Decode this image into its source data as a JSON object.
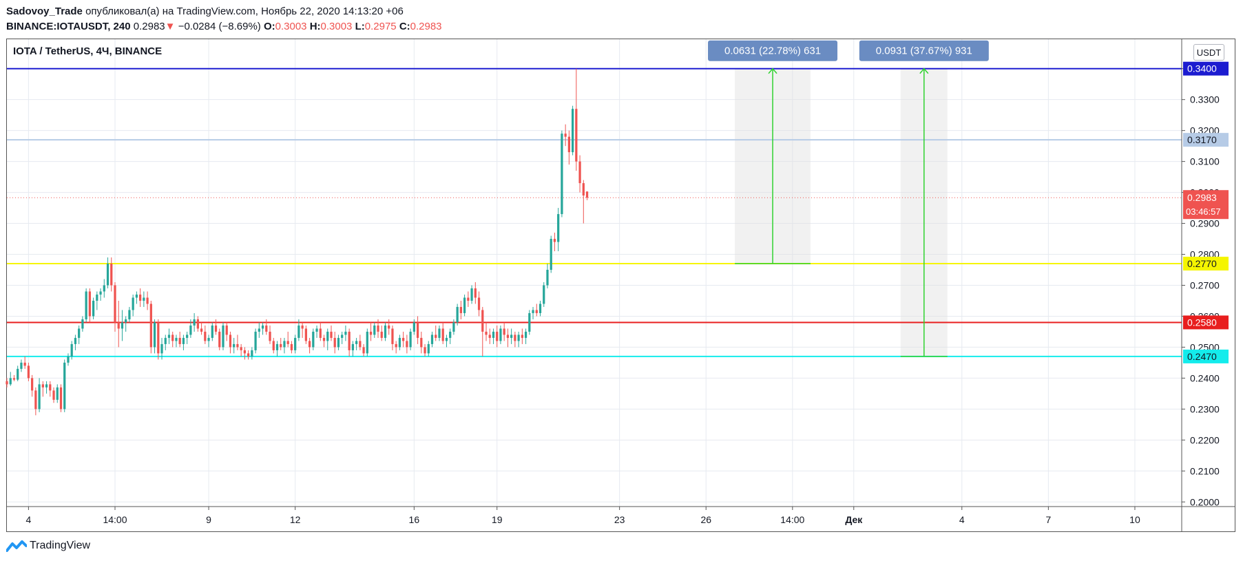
{
  "header": {
    "author": "Sadovoy_Trade",
    "published": "опубликовал(а) на TradingView.com, Ноябрь 22, 2020 14:13:20 +06",
    "symbol": "BINANCE:IOTAUSDT, 240",
    "last": "0.2983",
    "change": "−0.0284 (−8.69%)",
    "o_label": "O:",
    "o_value": "0.3003",
    "h_label": "H:",
    "h_value": "0.3003",
    "l_label": "L:",
    "l_value": "0.2975",
    "c_label": "C:",
    "c_value": "0.2983"
  },
  "chart_title": "IOTA / TetherUS, 4Ч, BINANCE",
  "currency_button": "USDT",
  "footer": {
    "brand": "TradingView"
  },
  "colors": {
    "up": "#26a69a",
    "down": "#ef5350",
    "grid": "#e6eaf0",
    "blue_line": "#1c1cd0",
    "light_blue_line": "#b6cbe6",
    "yellow_line": "#f5f500",
    "red_line": "#e81e1e",
    "cyan_line": "#14ecec",
    "projection": "#2fd22f",
    "badge": "#6a8cc2"
  },
  "chart_data": {
    "type": "candlestick",
    "title": "IOTA / TetherUS, 4Ч, BINANCE",
    "y_axis": {
      "ticks": [
        "0.2000",
        "0.2100",
        "0.2200",
        "0.2300",
        "0.2400",
        "0.2500",
        "0.2600",
        "0.2700",
        "0.2800",
        "0.2900",
        "0.3000",
        "0.3100",
        "0.3200",
        "0.3300",
        "0.3400"
      ],
      "range": [
        0.1985,
        0.3495
      ],
      "position": "right"
    },
    "x_axis": {
      "ticks": [
        {
          "label": "4",
          "i": 6
        },
        {
          "label": "14:00",
          "i": 30
        },
        {
          "label": "9",
          "i": 56
        },
        {
          "label": "12",
          "i": 80
        },
        {
          "label": "16",
          "i": 113
        },
        {
          "label": "19",
          "i": 136
        },
        {
          "label": "23",
          "i": 170
        },
        {
          "label": "26",
          "i": 194
        },
        {
          "label": "14:00",
          "i": 218
        },
        {
          "label": "Дек",
          "i": 235
        },
        {
          "label": "4",
          "i": 265
        },
        {
          "label": "7",
          "i": 289
        },
        {
          "label": "10",
          "i": 313
        }
      ],
      "range": [
        0,
        326
      ]
    },
    "candles": [
      [
        0.239,
        0.24,
        0.237,
        0.238
      ],
      [
        0.238,
        0.242,
        0.2375,
        0.24
      ],
      [
        0.24,
        0.241,
        0.239,
        0.2395
      ],
      [
        0.2395,
        0.244,
        0.239,
        0.243
      ],
      [
        0.243,
        0.246,
        0.242,
        0.245
      ],
      [
        0.245,
        0.247,
        0.243,
        0.244
      ],
      [
        0.244,
        0.245,
        0.239,
        0.24
      ],
      [
        0.24,
        0.241,
        0.234,
        0.236
      ],
      [
        0.236,
        0.237,
        0.228,
        0.23
      ],
      [
        0.23,
        0.24,
        0.229,
        0.238
      ],
      [
        0.238,
        0.239,
        0.234,
        0.237
      ],
      [
        0.237,
        0.239,
        0.235,
        0.238
      ],
      [
        0.238,
        0.239,
        0.234,
        0.236
      ],
      [
        0.236,
        0.237,
        0.232,
        0.233
      ],
      [
        0.233,
        0.238,
        0.232,
        0.237
      ],
      [
        0.237,
        0.238,
        0.229,
        0.23
      ],
      [
        0.23,
        0.246,
        0.229,
        0.245
      ],
      [
        0.245,
        0.248,
        0.244,
        0.247
      ],
      [
        0.247,
        0.252,
        0.246,
        0.251
      ],
      [
        0.251,
        0.254,
        0.249,
        0.253
      ],
      [
        0.253,
        0.257,
        0.251,
        0.256
      ],
      [
        0.256,
        0.26,
        0.255,
        0.259
      ],
      [
        0.259,
        0.269,
        0.258,
        0.268
      ],
      [
        0.268,
        0.269,
        0.258,
        0.26
      ],
      [
        0.26,
        0.266,
        0.259,
        0.265
      ],
      [
        0.265,
        0.268,
        0.262,
        0.267
      ],
      [
        0.267,
        0.269,
        0.265,
        0.268
      ],
      [
        0.268,
        0.272,
        0.266,
        0.27
      ],
      [
        0.27,
        0.279,
        0.269,
        0.277
      ],
      [
        0.277,
        0.279,
        0.268,
        0.27
      ],
      [
        0.27,
        0.271,
        0.255,
        0.258
      ],
      [
        0.258,
        0.265,
        0.25,
        0.256
      ],
      [
        0.256,
        0.262,
        0.252,
        0.258
      ],
      [
        0.258,
        0.26,
        0.255,
        0.259
      ],
      [
        0.259,
        0.263,
        0.258,
        0.262
      ],
      [
        0.262,
        0.267,
        0.26,
        0.266
      ],
      [
        0.266,
        0.268,
        0.264,
        0.267
      ],
      [
        0.267,
        0.269,
        0.263,
        0.265
      ],
      [
        0.265,
        0.268,
        0.263,
        0.266
      ],
      [
        0.266,
        0.268,
        0.262,
        0.264
      ],
      [
        0.264,
        0.265,
        0.248,
        0.25
      ],
      [
        0.25,
        0.259,
        0.248,
        0.258
      ],
      [
        0.258,
        0.259,
        0.246,
        0.248
      ],
      [
        0.248,
        0.253,
        0.246,
        0.251
      ],
      [
        0.251,
        0.254,
        0.249,
        0.253
      ],
      [
        0.253,
        0.256,
        0.251,
        0.254
      ],
      [
        0.254,
        0.255,
        0.25,
        0.252
      ],
      [
        0.252,
        0.254,
        0.25,
        0.253
      ],
      [
        0.253,
        0.255,
        0.25,
        0.251
      ],
      [
        0.251,
        0.254,
        0.249,
        0.253
      ],
      [
        0.253,
        0.255,
        0.251,
        0.254
      ],
      [
        0.254,
        0.259,
        0.253,
        0.257
      ],
      [
        0.257,
        0.261,
        0.255,
        0.259
      ],
      [
        0.259,
        0.26,
        0.255,
        0.256
      ],
      [
        0.256,
        0.258,
        0.254,
        0.255
      ],
      [
        0.255,
        0.257,
        0.251,
        0.252
      ],
      [
        0.252,
        0.254,
        0.25,
        0.253
      ],
      [
        0.253,
        0.258,
        0.252,
        0.257
      ],
      [
        0.257,
        0.259,
        0.254,
        0.255
      ],
      [
        0.255,
        0.256,
        0.249,
        0.25
      ],
      [
        0.25,
        0.258,
        0.249,
        0.257
      ],
      [
        0.257,
        0.258,
        0.252,
        0.254
      ],
      [
        0.254,
        0.255,
        0.248,
        0.25
      ],
      [
        0.25,
        0.253,
        0.248,
        0.251
      ],
      [
        0.251,
        0.254,
        0.249,
        0.25
      ],
      [
        0.25,
        0.251,
        0.247,
        0.249
      ],
      [
        0.249,
        0.25,
        0.246,
        0.248
      ],
      [
        0.248,
        0.249,
        0.246,
        0.247
      ],
      [
        0.247,
        0.25,
        0.246,
        0.249
      ],
      [
        0.249,
        0.256,
        0.248,
        0.255
      ],
      [
        0.255,
        0.258,
        0.253,
        0.256
      ],
      [
        0.256,
        0.258,
        0.254,
        0.257
      ],
      [
        0.257,
        0.259,
        0.254,
        0.255
      ],
      [
        0.255,
        0.257,
        0.251,
        0.252
      ],
      [
        0.252,
        0.253,
        0.248,
        0.249
      ],
      [
        0.249,
        0.252,
        0.247,
        0.251
      ],
      [
        0.251,
        0.253,
        0.249,
        0.25
      ],
      [
        0.25,
        0.253,
        0.248,
        0.252
      ],
      [
        0.252,
        0.255,
        0.25,
        0.251
      ],
      [
        0.251,
        0.252,
        0.248,
        0.249
      ],
      [
        0.249,
        0.254,
        0.248,
        0.253
      ],
      [
        0.253,
        0.259,
        0.252,
        0.257
      ],
      [
        0.257,
        0.258,
        0.253,
        0.256
      ],
      [
        0.256,
        0.257,
        0.251,
        0.252
      ],
      [
        0.252,
        0.253,
        0.248,
        0.25
      ],
      [
        0.25,
        0.256,
        0.249,
        0.255
      ],
      [
        0.255,
        0.257,
        0.253,
        0.256
      ],
      [
        0.256,
        0.258,
        0.252,
        0.253
      ],
      [
        0.253,
        0.254,
        0.25,
        0.252
      ],
      [
        0.252,
        0.256,
        0.249,
        0.255
      ],
      [
        0.255,
        0.257,
        0.252,
        0.253
      ],
      [
        0.253,
        0.255,
        0.248,
        0.25
      ],
      [
        0.25,
        0.254,
        0.249,
        0.253
      ],
      [
        0.253,
        0.255,
        0.251,
        0.254
      ],
      [
        0.254,
        0.257,
        0.252,
        0.255
      ],
      [
        0.255,
        0.256,
        0.247,
        0.249
      ],
      [
        0.249,
        0.252,
        0.247,
        0.251
      ],
      [
        0.251,
        0.253,
        0.249,
        0.252
      ],
      [
        0.252,
        0.254,
        0.249,
        0.25
      ],
      [
        0.25,
        0.251,
        0.247,
        0.248
      ],
      [
        0.248,
        0.256,
        0.247,
        0.255
      ],
      [
        0.255,
        0.258,
        0.252,
        0.254
      ],
      [
        0.254,
        0.258,
        0.253,
        0.257
      ],
      [
        0.257,
        0.259,
        0.253,
        0.255
      ],
      [
        0.255,
        0.257,
        0.252,
        0.253
      ],
      [
        0.253,
        0.258,
        0.252,
        0.257
      ],
      [
        0.257,
        0.259,
        0.254,
        0.256
      ],
      [
        0.256,
        0.257,
        0.249,
        0.251
      ],
      [
        0.251,
        0.252,
        0.248,
        0.25
      ],
      [
        0.25,
        0.254,
        0.249,
        0.253
      ],
      [
        0.253,
        0.255,
        0.25,
        0.252
      ],
      [
        0.252,
        0.254,
        0.248,
        0.25
      ],
      [
        0.25,
        0.256,
        0.249,
        0.255
      ],
      [
        0.255,
        0.259,
        0.254,
        0.258
      ],
      [
        0.258,
        0.26,
        0.251,
        0.253
      ],
      [
        0.253,
        0.255,
        0.248,
        0.25
      ],
      [
        0.25,
        0.251,
        0.247,
        0.248
      ],
      [
        0.248,
        0.252,
        0.247,
        0.251
      ],
      [
        0.251,
        0.255,
        0.25,
        0.254
      ],
      [
        0.254,
        0.257,
        0.252,
        0.253
      ],
      [
        0.253,
        0.257,
        0.252,
        0.256
      ],
      [
        0.256,
        0.258,
        0.251,
        0.252
      ],
      [
        0.252,
        0.254,
        0.25,
        0.253
      ],
      [
        0.253,
        0.256,
        0.251,
        0.255
      ],
      [
        0.255,
        0.259,
        0.254,
        0.258
      ],
      [
        0.258,
        0.264,
        0.257,
        0.263
      ],
      [
        0.263,
        0.265,
        0.259,
        0.261
      ],
      [
        0.261,
        0.267,
        0.26,
        0.266
      ],
      [
        0.266,
        0.268,
        0.263,
        0.265
      ],
      [
        0.265,
        0.27,
        0.264,
        0.269
      ],
      [
        0.269,
        0.271,
        0.264,
        0.266
      ],
      [
        0.266,
        0.268,
        0.26,
        0.262
      ],
      [
        0.262,
        0.263,
        0.247,
        0.255
      ],
      [
        0.255,
        0.258,
        0.252,
        0.254
      ],
      [
        0.254,
        0.256,
        0.251,
        0.253
      ],
      [
        0.253,
        0.256,
        0.251,
        0.255
      ],
      [
        0.255,
        0.257,
        0.25,
        0.252
      ],
      [
        0.252,
        0.257,
        0.251,
        0.256
      ],
      [
        0.256,
        0.258,
        0.252,
        0.254
      ],
      [
        0.254,
        0.256,
        0.25,
        0.253
      ],
      [
        0.253,
        0.256,
        0.251,
        0.254
      ],
      [
        0.254,
        0.255,
        0.25,
        0.252
      ],
      [
        0.252,
        0.255,
        0.25,
        0.254
      ],
      [
        0.254,
        0.256,
        0.251,
        0.253
      ],
      [
        0.253,
        0.256,
        0.251,
        0.255
      ],
      [
        0.255,
        0.262,
        0.254,
        0.261
      ],
      [
        0.261,
        0.263,
        0.259,
        0.262
      ],
      [
        0.262,
        0.264,
        0.26,
        0.261
      ],
      [
        0.261,
        0.265,
        0.26,
        0.264
      ],
      [
        0.264,
        0.271,
        0.263,
        0.27
      ],
      [
        0.27,
        0.277,
        0.269,
        0.275
      ],
      [
        0.275,
        0.286,
        0.274,
        0.285
      ],
      [
        0.285,
        0.287,
        0.281,
        0.284
      ],
      [
        0.284,
        0.295,
        0.281,
        0.293
      ],
      [
        0.293,
        0.32,
        0.292,
        0.319
      ],
      [
        0.319,
        0.322,
        0.315,
        0.318
      ],
      [
        0.318,
        0.32,
        0.309,
        0.313
      ],
      [
        0.313,
        0.328,
        0.312,
        0.327
      ],
      [
        0.327,
        0.34,
        0.307,
        0.31
      ],
      [
        0.31,
        0.312,
        0.3,
        0.303
      ],
      [
        0.303,
        0.304,
        0.29,
        0.299
      ],
      [
        0.3003,
        0.3003,
        0.2975,
        0.2983
      ]
    ],
    "horizontal_levels": [
      {
        "price": 0.34,
        "label": "0.3400",
        "color": "#1c1cd0"
      },
      {
        "price": 0.317,
        "label": "0.3170",
        "color": "#b6cbe6"
      },
      {
        "price": 0.277,
        "label": "0.2770",
        "color": "#f5f500"
      },
      {
        "price": 0.258,
        "label": "0.2580",
        "color": "#e81e1e"
      },
      {
        "price": 0.247,
        "label": "0.2470",
        "color": "#14ecec"
      }
    ],
    "current_price": {
      "price": 0.2983,
      "label": "0.2983",
      "countdown": "03:46:57"
    },
    "projections": [
      {
        "i_start": 202,
        "i_end": 223,
        "from": 0.277,
        "to": 0.34,
        "label": "0.0631 (22.78%) 631"
      },
      {
        "i_start": 248,
        "i_end": 261,
        "from": 0.247,
        "to": 0.34,
        "label": "0.0931 (37.67%) 931"
      }
    ]
  }
}
